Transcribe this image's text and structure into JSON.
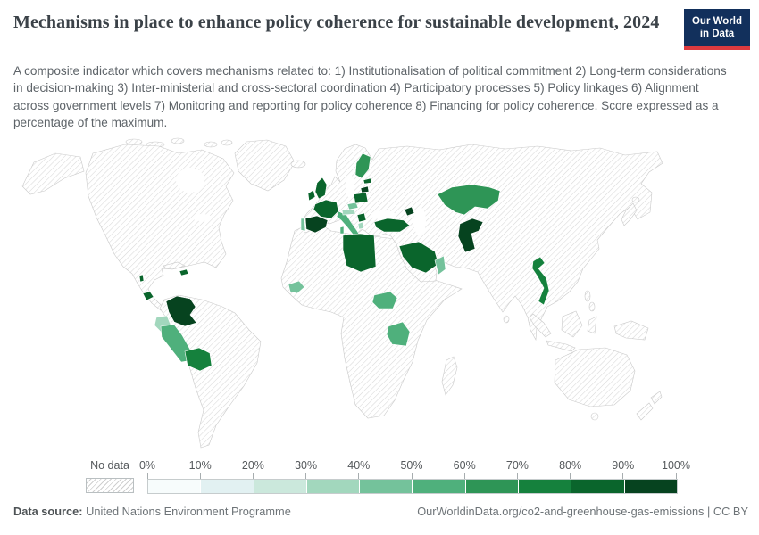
{
  "header": {
    "title": "Mechanisms in place to enhance policy coherence for sustainable development, 2024",
    "logo_line1": "Our World",
    "logo_line2": "in Data",
    "logo_bg": "#12305c",
    "logo_accent": "#dc3a3f"
  },
  "subtitle": "A composite indicator which covers mechanisms related to: 1) Institutionalisation of political commitment 2) Long-term considerations in decision-making 3) Inter-ministerial and cross-sectoral coordination 4) Participatory processes 5) Policy linkages 6) Alignment across government levels 7) Monitoring and reporting for policy coherence 8) Financing for policy coherence. Score expressed as a percentage of the maximum.",
  "legend": {
    "no_data_label": "No data",
    "tick_labels": [
      "0%",
      "10%",
      "20%",
      "30%",
      "40%",
      "50%",
      "60%",
      "70%",
      "80%",
      "90%",
      "100%"
    ],
    "colors": [
      "#f7fcfc",
      "#e2f1f2",
      "#cbe8dc",
      "#a2d7bd",
      "#74c29b",
      "#4fb07c",
      "#2e9556",
      "#15813d",
      "#0a652c",
      "#06431f"
    ]
  },
  "footer": {
    "datasource_label": "Data source:",
    "datasource_value": " United Nations Environment Programme",
    "link_text": "OurWorldinData.org/co2-and-greenhouse-gas-emissions | CC BY"
  },
  "chart_data": {
    "type": "heatmap",
    "subtype": "choropleth-world-map",
    "title": "Mechanisms in place to enhance policy coherence for sustainable development, 2024",
    "unit": "% of maximum score",
    "value_range": [
      0,
      100
    ],
    "bucket_size": 10,
    "no_data_style": "hatched",
    "legend_position": "bottom",
    "countries": [
      {
        "name": "Belize",
        "value": 85
      },
      {
        "name": "Costa Rica",
        "value": 85
      },
      {
        "name": "Dominican Republic",
        "value": 85
      },
      {
        "name": "Colombia",
        "value": 95
      },
      {
        "name": "Ecuador",
        "value": 35
      },
      {
        "name": "Peru",
        "value": 55
      },
      {
        "name": "Bolivia",
        "value": 75
      },
      {
        "name": "Ireland",
        "value": 80
      },
      {
        "name": "United Kingdom",
        "value": 85
      },
      {
        "name": "France",
        "value": 85
      },
      {
        "name": "Spain",
        "value": 95
      },
      {
        "name": "Portugal",
        "value": 45
      },
      {
        "name": "Italy",
        "value": 55
      },
      {
        "name": "Czechia",
        "value": 45
      },
      {
        "name": "Austria",
        "value": 35
      },
      {
        "name": "Poland",
        "value": 85
      },
      {
        "name": "Lithuania",
        "value": 90
      },
      {
        "name": "Estonia",
        "value": 85
      },
      {
        "name": "Finland",
        "value": 65
      },
      {
        "name": "Serbia",
        "value": 80
      },
      {
        "name": "Albania",
        "value": 35
      },
      {
        "name": "Turkey",
        "value": 85
      },
      {
        "name": "Azerbaijan",
        "value": 95
      },
      {
        "name": "Libya",
        "value": 85
      },
      {
        "name": "Guinea",
        "value": 45
      },
      {
        "name": "South Sudan",
        "value": 55
      },
      {
        "name": "Tanzania",
        "value": 55
      },
      {
        "name": "Saudi Arabia",
        "value": 85
      },
      {
        "name": "Oman",
        "value": 45
      },
      {
        "name": "Kazakhstan",
        "value": 65
      },
      {
        "name": "Pakistan",
        "value": 95
      },
      {
        "name": "Vietnam",
        "value": 75
      }
    ]
  }
}
